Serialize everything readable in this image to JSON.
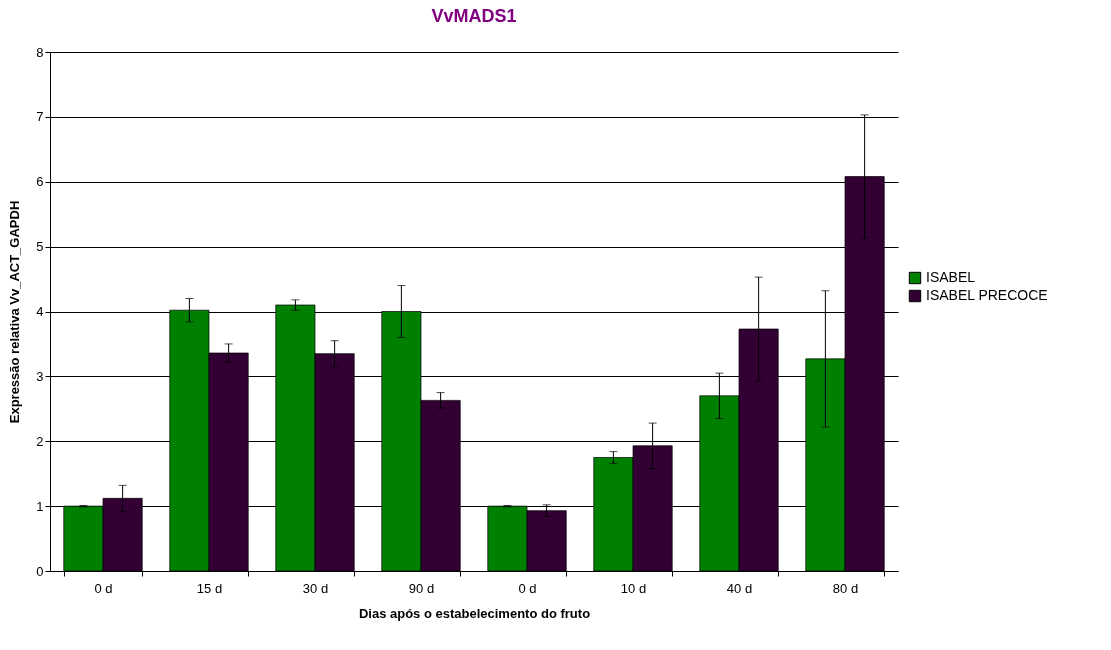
{
  "chart_data": {
    "type": "bar",
    "title": "VvMADS1",
    "xlabel": "Dias após o estabelecimento do fruto",
    "ylabel": "Expressão relativa Vv_ACT_GAPDH",
    "categories": [
      "0 d",
      "15 d",
      "30 d",
      "90 d",
      "0 d",
      "10 d",
      "40 d",
      "80 d"
    ],
    "series": [
      {
        "name": "ISABEL",
        "color": "#008000",
        "values": [
          1.0,
          4.02,
          4.1,
          4.0,
          1.0,
          1.75,
          2.7,
          3.27
        ],
        "errors": [
          0.01,
          0.18,
          0.08,
          0.4,
          0.01,
          0.09,
          0.35,
          1.05
        ]
      },
      {
        "name": "ISABEL PRECOCE",
        "color": "#330033",
        "values": [
          1.12,
          3.36,
          3.35,
          2.63,
          0.93,
          1.93,
          3.73,
          6.08
        ],
        "errors": [
          0.2,
          0.14,
          0.2,
          0.12,
          0.09,
          0.35,
          0.8,
          0.95
        ]
      }
    ],
    "ylim": [
      0,
      8
    ],
    "yticks": [
      0,
      1,
      2,
      3,
      4,
      5,
      6,
      7,
      8
    ],
    "grid": "y",
    "legend": "right"
  }
}
